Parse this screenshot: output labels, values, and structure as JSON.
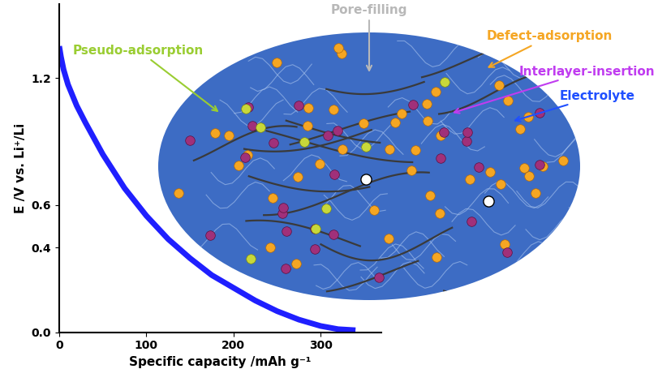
{
  "chart_data": {
    "type": "line",
    "x": [
      0,
      2,
      5,
      10,
      20,
      30,
      50,
      75,
      100,
      125,
      150,
      175,
      200,
      225,
      250,
      275,
      300,
      320,
      340
    ],
    "values": [
      1.35,
      1.3,
      1.24,
      1.17,
      1.07,
      0.99,
      0.84,
      0.68,
      0.55,
      0.44,
      0.35,
      0.27,
      0.21,
      0.15,
      0.1,
      0.06,
      0.03,
      0.015,
      0.01
    ],
    "color": "#1f1fff",
    "xlabel": "Specific capacity /mAh g⁻¹",
    "ylabel": "E /V vs. Li⁺/Li",
    "xlim": [
      0,
      370
    ],
    "ylim": [
      0,
      1.55
    ],
    "xticks": [
      0,
      100,
      200,
      300
    ],
    "yticks": [
      0.0,
      0.4,
      0.6,
      1.2
    ],
    "annotations": [
      {
        "text": "Pseudo-adsorption",
        "color": "#9acd32"
      },
      {
        "text": "Pore-filling",
        "color": "#b8b8b8"
      },
      {
        "text": "Defect-adsorption",
        "color": "#f5a623"
      },
      {
        "text": "Interlayer-insertion",
        "color": "#c03cf0"
      },
      {
        "text": "Electrolyte",
        "color": "#1f4fff"
      }
    ]
  }
}
